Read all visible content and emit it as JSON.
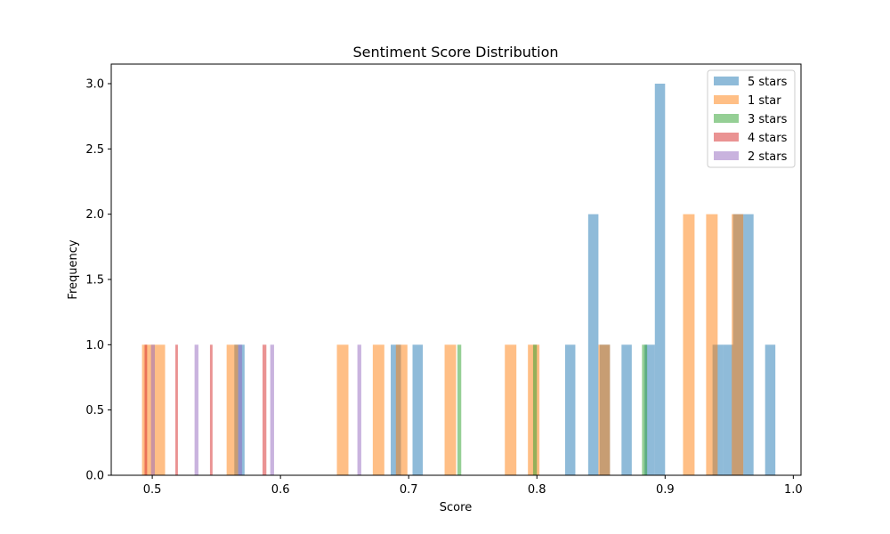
{
  "chart_data": {
    "type": "bar",
    "title": "Sentiment Score Distribution",
    "xlabel": "Score",
    "ylabel": "Frequency",
    "xlim": [
      0.468,
      1.006
    ],
    "ylim": [
      0,
      3.15
    ],
    "xticks": [
      0.5,
      0.6,
      0.7,
      0.8,
      0.9,
      1.0
    ],
    "xtick_labels": [
      "0.5",
      "0.6",
      "0.7",
      "0.8",
      "0.9",
      "1.0"
    ],
    "yticks": [
      0.0,
      0.5,
      1.0,
      1.5,
      2.0,
      2.5,
      3.0
    ],
    "ytick_labels": [
      "0.0",
      "0.5",
      "1.0",
      "1.5",
      "2.0",
      "2.5",
      "3.0"
    ],
    "grid": false,
    "legend_position": "top-right",
    "series": [
      {
        "name": "5 stars",
        "color": "#1f77b4",
        "bins": [
          {
            "x0": 0.564,
            "x1": 0.572,
            "value": 1
          },
          {
            "x0": 0.686,
            "x1": 0.694,
            "value": 1
          },
          {
            "x0": 0.703,
            "x1": 0.711,
            "value": 1
          },
          {
            "x0": 0.822,
            "x1": 0.83,
            "value": 1
          },
          {
            "x0": 0.84,
            "x1": 0.848,
            "value": 2
          },
          {
            "x0": 0.849,
            "x1": 0.857,
            "value": 1
          },
          {
            "x0": 0.866,
            "x1": 0.874,
            "value": 1
          },
          {
            "x0": 0.884,
            "x1": 0.892,
            "value": 1
          },
          {
            "x0": 0.892,
            "x1": 0.9,
            "value": 3
          },
          {
            "x0": 0.937,
            "x1": 0.945,
            "value": 1
          },
          {
            "x0": 0.945,
            "x1": 0.953,
            "value": 1
          },
          {
            "x0": 0.953,
            "x1": 0.961,
            "value": 2
          },
          {
            "x0": 0.961,
            "x1": 0.969,
            "value": 2
          },
          {
            "x0": 0.978,
            "x1": 0.986,
            "value": 1
          }
        ]
      },
      {
        "name": "1 star",
        "color": "#ff7f0e",
        "bins": [
          {
            "x0": 0.492,
            "x1": 0.501,
            "value": 1
          },
          {
            "x0": 0.501,
            "x1": 0.51,
            "value": 1
          },
          {
            "x0": 0.558,
            "x1": 0.567,
            "value": 1
          },
          {
            "x0": 0.644,
            "x1": 0.653,
            "value": 1
          },
          {
            "x0": 0.672,
            "x1": 0.681,
            "value": 1
          },
          {
            "x0": 0.69,
            "x1": 0.699,
            "value": 1
          },
          {
            "x0": 0.728,
            "x1": 0.737,
            "value": 1
          },
          {
            "x0": 0.775,
            "x1": 0.784,
            "value": 1
          },
          {
            "x0": 0.793,
            "x1": 0.802,
            "value": 1
          },
          {
            "x0": 0.848,
            "x1": 0.857,
            "value": 1
          },
          {
            "x0": 0.914,
            "x1": 0.923,
            "value": 2
          },
          {
            "x0": 0.932,
            "x1": 0.941,
            "value": 2
          },
          {
            "x0": 0.952,
            "x1": 0.961,
            "value": 2
          }
        ]
      },
      {
        "name": "3 stars",
        "color": "#2ca02c",
        "bins": [
          {
            "x0": 0.738,
            "x1": 0.741,
            "value": 1
          },
          {
            "x0": 0.797,
            "x1": 0.8,
            "value": 1
          },
          {
            "x0": 0.882,
            "x1": 0.886,
            "value": 1
          }
        ]
      },
      {
        "name": "4 stars",
        "color": "#d62728",
        "bins": [
          {
            "x0": 0.494,
            "x1": 0.496,
            "value": 1
          },
          {
            "x0": 0.518,
            "x1": 0.52,
            "value": 1
          },
          {
            "x0": 0.545,
            "x1": 0.547,
            "value": 1
          },
          {
            "x0": 0.586,
            "x1": 0.589,
            "value": 1
          }
        ]
      },
      {
        "name": "2 stars",
        "color": "#9467bd",
        "bins": [
          {
            "x0": 0.499,
            "x1": 0.502,
            "value": 1
          },
          {
            "x0": 0.533,
            "x1": 0.536,
            "value": 1
          },
          {
            "x0": 0.567,
            "x1": 0.57,
            "value": 1
          },
          {
            "x0": 0.592,
            "x1": 0.595,
            "value": 1
          },
          {
            "x0": 0.66,
            "x1": 0.663,
            "value": 1
          }
        ]
      }
    ]
  }
}
